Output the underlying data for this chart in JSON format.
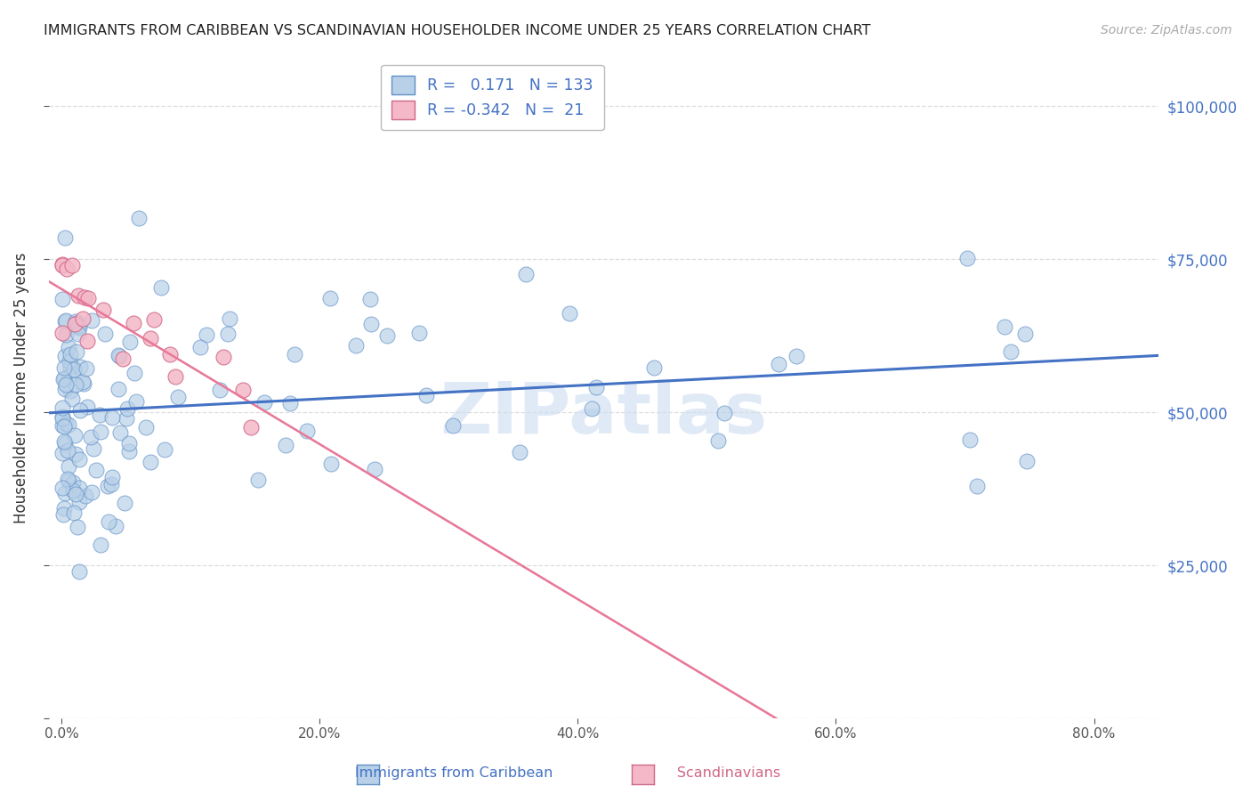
{
  "title": "IMMIGRANTS FROM CARIBBEAN VS SCANDINAVIAN HOUSEHOLDER INCOME UNDER 25 YEARS CORRELATION CHART",
  "source": "Source: ZipAtlas.com",
  "ylabel": "Householder Income Under 25 years",
  "caribbean_R": 0.171,
  "caribbean_N": 133,
  "scandinavian_R": -0.342,
  "scandinavian_N": 21,
  "caribbean_color": "#b8d0e8",
  "scandinavian_color": "#f4b8c8",
  "caribbean_edge_color": "#6090c8",
  "scandinavian_edge_color": "#d06888",
  "caribbean_line_color": "#4472c4",
  "scandinavian_line_color": "#e87898",
  "scandinavian_dashed_color": "#f0b8c8",
  "label_color": "#4472c4",
  "title_color": "#222222",
  "source_color": "#aaaaaa",
  "grid_color": "#dddddd",
  "watermark_text": "ZIPatlas",
  "watermark_color": "#ccddf0",
  "xlim": [
    -1,
    85
  ],
  "ylim": [
    0,
    108000
  ],
  "xticks": [
    0,
    20,
    40,
    60,
    80
  ],
  "xtick_labels": [
    "0.0%",
    "20.0%",
    "40.0%",
    "60.0%",
    "80.0%"
  ],
  "yticks": [
    0,
    25000,
    50000,
    75000,
    100000
  ],
  "ytick_labels_right": [
    "$25,000",
    "$50,000",
    "$75,000",
    "$100,000"
  ],
  "legend_label_carib": "Immigrants from Caribbean",
  "legend_label_scand": "Scandinavians",
  "carib_seed": 42,
  "scand_seed": 99
}
